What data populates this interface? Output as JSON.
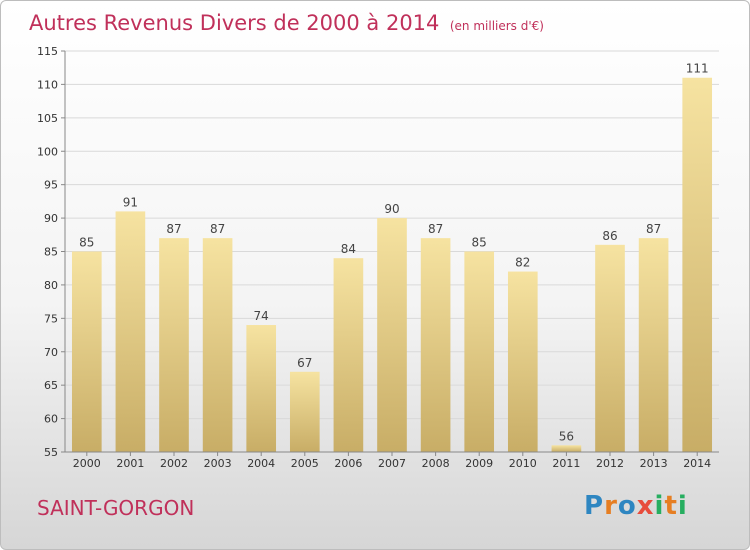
{
  "header": {
    "title": "Autres Revenus Divers de 2000 à 2014",
    "subtitle": "(en milliers d'€)"
  },
  "footer": {
    "commune": "SAINT-GORGON",
    "logo_letters": [
      {
        "char": "P",
        "color": "#2e86c1"
      },
      {
        "char": "r",
        "color": "#e67e22"
      },
      {
        "char": "o",
        "color": "#2e86c1"
      },
      {
        "char": "x",
        "color": "#e74c3c"
      },
      {
        "char": "i",
        "color": "#27ae60"
      },
      {
        "char": "t",
        "color": "#e67e22"
      },
      {
        "char": "i",
        "color": "#27ae60"
      }
    ]
  },
  "colors": {
    "bar_light": "#f6e3a1",
    "bar_dark": "#c8ad66",
    "grid": "#d9d9d9",
    "axis": "#888888"
  },
  "chart_data": {
    "type": "bar",
    "title": "Autres Revenus Divers de 2000 à 2014",
    "subtitle": "(en milliers d'€)",
    "categories": [
      "2000",
      "2001",
      "2002",
      "2003",
      "2004",
      "2005",
      "2006",
      "2007",
      "2008",
      "2009",
      "2010",
      "2011",
      "2012",
      "2013",
      "2014"
    ],
    "values": [
      85,
      91,
      87,
      87,
      74,
      67,
      84,
      90,
      87,
      85,
      82,
      56,
      86,
      87,
      111
    ],
    "ylim": [
      55,
      115
    ],
    "yticks": [
      55,
      60,
      65,
      70,
      75,
      80,
      85,
      90,
      95,
      100,
      105,
      110,
      115
    ],
    "grid": true,
    "legend": "none"
  }
}
